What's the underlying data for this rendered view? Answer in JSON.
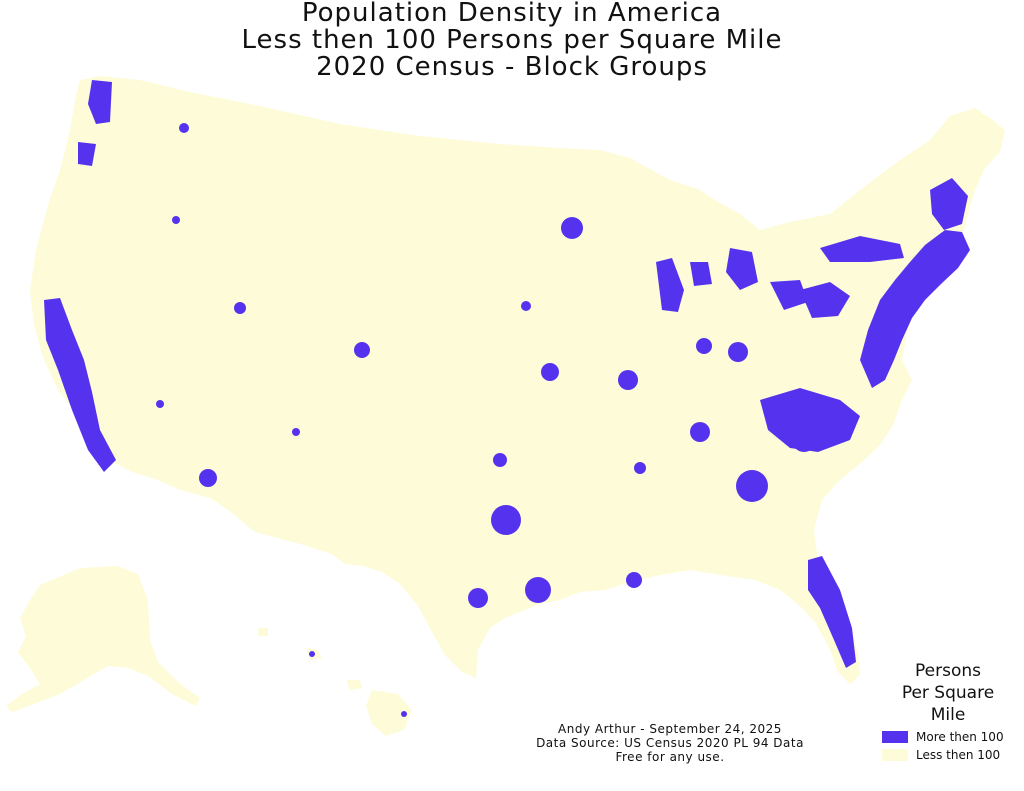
{
  "title": {
    "line1": "Population Density in America",
    "line2": "Less then 100 Persons per Square Mile",
    "line3": "2020 Census - Block Groups"
  },
  "credits": {
    "line1": "Andy Arthur - September 24, 2025",
    "line2": "Data Source: US Census 2020 PL 94 Data",
    "line3": "Free for any use."
  },
  "legend": {
    "title_line1": "Persons",
    "title_line2": "Per Square",
    "title_line3": "Mile",
    "items": [
      {
        "label": "More then 100",
        "color": "#5533ee"
      },
      {
        "label": "Less then 100",
        "color": "#fefcd8"
      }
    ]
  },
  "colors": {
    "land": "#fefcd8",
    "dense": "#5533ee",
    "background": "#ffffff"
  }
}
